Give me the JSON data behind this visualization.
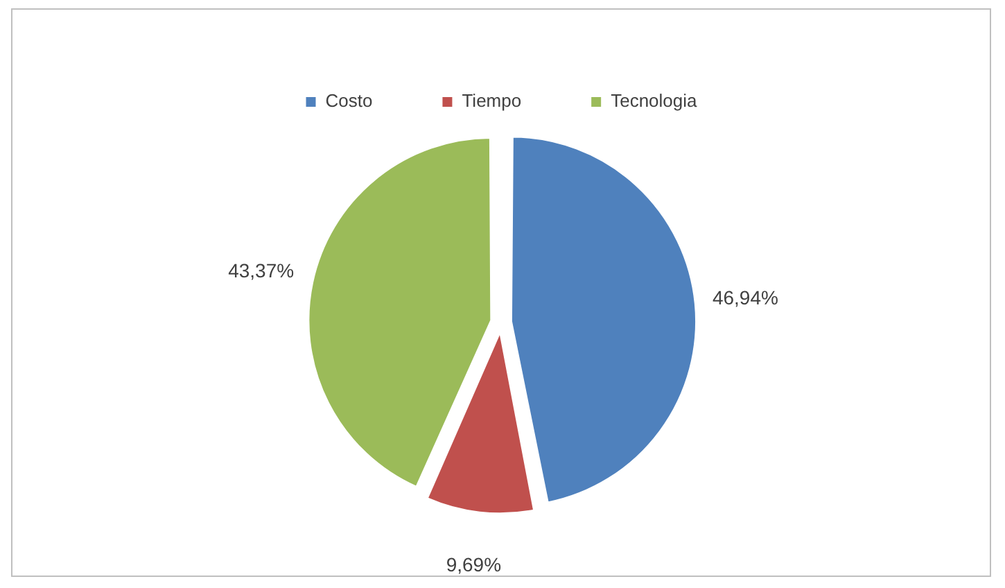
{
  "chart_data": {
    "type": "pie",
    "categories": [
      "Costo",
      "Tiempo",
      "Tecnologia"
    ],
    "values": [
      46.94,
      9.69,
      43.37
    ],
    "colors": [
      "#4f81bd",
      "#c0504d",
      "#9bbb59"
    ],
    "value_labels": [
      "46,94%",
      "9,69%",
      "43,37%"
    ],
    "legend": "top"
  }
}
